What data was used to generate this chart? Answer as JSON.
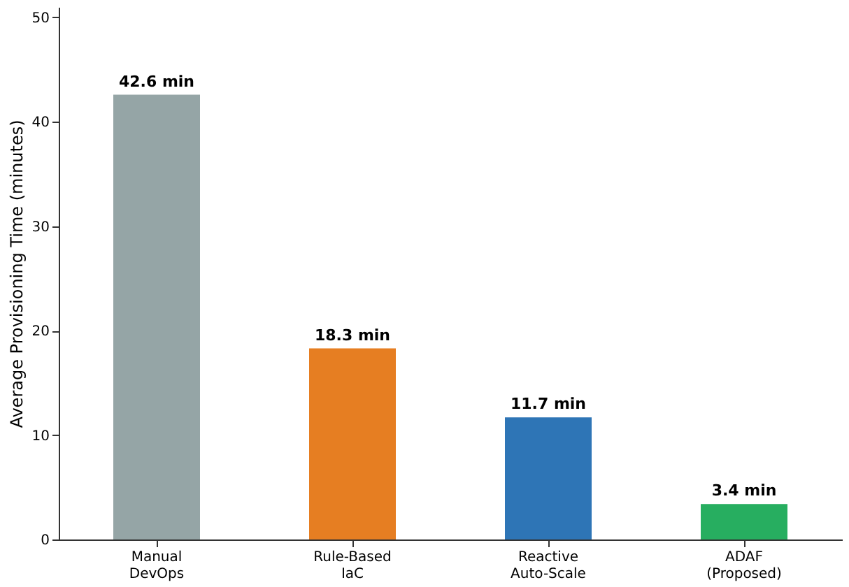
{
  "chart_data": {
    "type": "bar",
    "ylabel": "Average Provisioning Time (minutes)",
    "categories": [
      "Manual\nDevOps",
      "Rule-Based\nIaC",
      "Reactive\nAuto-Scale",
      "ADAF\n(Proposed)"
    ],
    "values": [
      42.6,
      18.3,
      11.7,
      3.4
    ],
    "colors": [
      "#95a5a6",
      "#e67e22",
      "#2e75b6",
      "#27ae60"
    ],
    "value_labels": [
      "42.6 min",
      "18.3 min",
      "11.7 min",
      "3.4 min"
    ],
    "ylim": [
      0,
      51
    ],
    "yticks": [
      0,
      10,
      20,
      30,
      40,
      50
    ],
    "grid": false
  }
}
